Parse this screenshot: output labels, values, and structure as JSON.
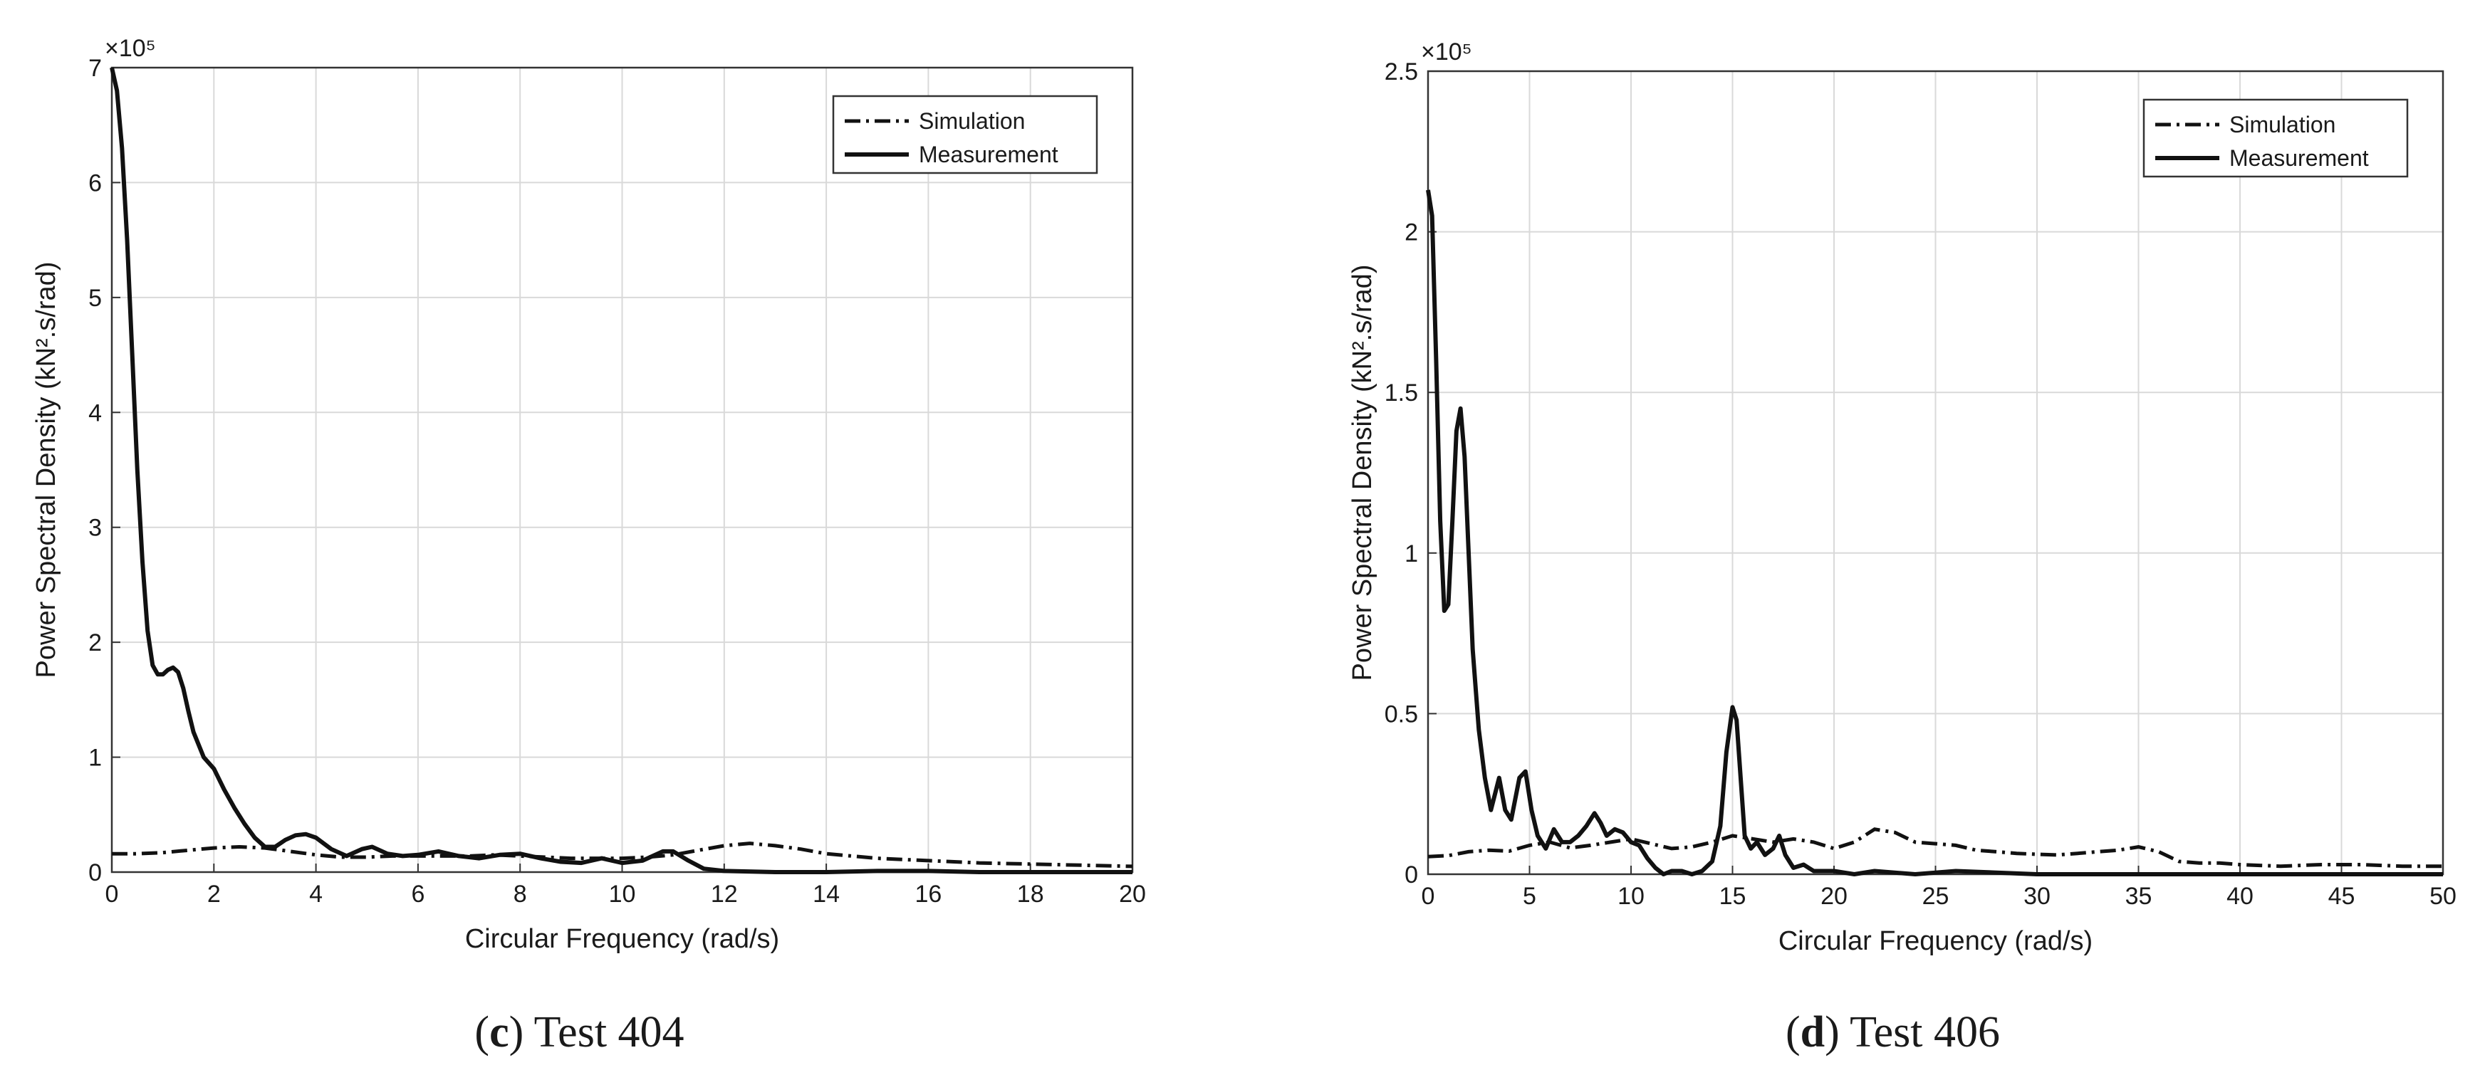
{
  "chart_data": [
    {
      "type": "line",
      "xlabel": "Circular Frequency (rad/s)",
      "ylabel": "Power Spectral Density (kN².s/rad)",
      "y_multiplier": "×10⁵",
      "xlim": [
        0,
        20
      ],
      "ylim": [
        0,
        7
      ],
      "xticks": [
        0,
        2,
        4,
        6,
        8,
        10,
        12,
        14,
        16,
        18,
        20
      ],
      "yticks": [
        0,
        1,
        2,
        3,
        4,
        5,
        6,
        7
      ],
      "grid": true,
      "legend_position": "top-right",
      "caption_letter": "c",
      "caption_text": ") Test 404",
      "series": [
        {
          "name": "Simulation",
          "style": "dash-dot",
          "x": [
            0,
            0.5,
            1,
            1.5,
            2,
            2.5,
            3,
            3.5,
            4,
            4.5,
            5,
            5.5,
            6,
            6.5,
            7,
            7.5,
            8,
            8.5,
            9,
            9.5,
            10,
            10.5,
            11,
            11.5,
            12,
            12.5,
            13,
            13.5,
            14,
            15,
            16,
            17,
            18,
            19,
            20
          ],
          "y": [
            0.16,
            0.16,
            0.17,
            0.19,
            0.21,
            0.22,
            0.21,
            0.18,
            0.15,
            0.13,
            0.13,
            0.14,
            0.14,
            0.14,
            0.14,
            0.15,
            0.14,
            0.13,
            0.12,
            0.12,
            0.12,
            0.13,
            0.15,
            0.19,
            0.23,
            0.25,
            0.23,
            0.2,
            0.16,
            0.12,
            0.1,
            0.08,
            0.07,
            0.06,
            0.05
          ]
        },
        {
          "name": "Measurement",
          "style": "solid",
          "x": [
            0,
            0.1,
            0.2,
            0.3,
            0.4,
            0.5,
            0.6,
            0.7,
            0.8,
            0.9,
            1.0,
            1.1,
            1.2,
            1.3,
            1.4,
            1.5,
            1.6,
            1.8,
            2.0,
            2.2,
            2.4,
            2.6,
            2.8,
            3.0,
            3.2,
            3.4,
            3.6,
            3.8,
            4.0,
            4.3,
            4.6,
            4.9,
            5.1,
            5.4,
            5.7,
            6.0,
            6.4,
            6.8,
            7.2,
            7.6,
            8.0,
            8.4,
            8.8,
            9.2,
            9.6,
            10.0,
            10.4,
            10.8,
            11.0,
            11.3,
            11.6,
            12.0,
            13.0,
            14.0,
            15.0,
            16.0,
            17.0,
            18.0,
            19.0,
            20.0
          ],
          "y": [
            7.0,
            6.8,
            6.3,
            5.5,
            4.5,
            3.5,
            2.7,
            2.1,
            1.8,
            1.72,
            1.72,
            1.76,
            1.78,
            1.74,
            1.6,
            1.4,
            1.22,
            1.0,
            0.9,
            0.72,
            0.56,
            0.42,
            0.3,
            0.22,
            0.22,
            0.28,
            0.32,
            0.33,
            0.3,
            0.2,
            0.14,
            0.2,
            0.22,
            0.16,
            0.14,
            0.15,
            0.18,
            0.14,
            0.12,
            0.15,
            0.16,
            0.12,
            0.09,
            0.08,
            0.12,
            0.08,
            0.1,
            0.18,
            0.18,
            0.1,
            0.03,
            0.01,
            0.0,
            0.0,
            0.01,
            0.01,
            0.0,
            0.0,
            0.0,
            0.0
          ]
        }
      ]
    },
    {
      "type": "line",
      "xlabel": "Circular Frequency (rad/s)",
      "ylabel": "Power Spectral Density (kN².s/rad)",
      "y_multiplier": "×10⁵",
      "xlim": [
        0,
        50
      ],
      "ylim": [
        0,
        2.5
      ],
      "xticks": [
        0,
        5,
        10,
        15,
        20,
        25,
        30,
        35,
        40,
        45,
        50
      ],
      "yticks": [
        0,
        0.5,
        1,
        1.5,
        2,
        2.5
      ],
      "ytick_labels": [
        "0",
        "0.5",
        "1",
        "1.5",
        "2",
        "2.5"
      ],
      "grid": true,
      "legend_position": "top-right",
      "caption_letter": "d",
      "caption_text": ") Test 406",
      "series": [
        {
          "name": "Simulation",
          "style": "dash-dot",
          "x": [
            0,
            1,
            2,
            3,
            4,
            5,
            6,
            7,
            8,
            9,
            10,
            11,
            12,
            13,
            14,
            15,
            16,
            17,
            18,
            19,
            20,
            21,
            22,
            23,
            24,
            25,
            26,
            27,
            28,
            29,
            30,
            31,
            32,
            33,
            34,
            35,
            36,
            37,
            38,
            39,
            40,
            42,
            44,
            46,
            48,
            50
          ],
          "y": [
            0.055,
            0.058,
            0.07,
            0.075,
            0.072,
            0.09,
            0.1,
            0.082,
            0.09,
            0.1,
            0.11,
            0.095,
            0.08,
            0.085,
            0.1,
            0.12,
            0.11,
            0.1,
            0.11,
            0.1,
            0.08,
            0.1,
            0.14,
            0.13,
            0.1,
            0.095,
            0.09,
            0.075,
            0.07,
            0.065,
            0.062,
            0.06,
            0.065,
            0.07,
            0.075,
            0.085,
            0.07,
            0.04,
            0.035,
            0.035,
            0.03,
            0.025,
            0.03,
            0.03,
            0.025,
            0.025
          ]
        },
        {
          "name": "Measurement",
          "style": "solid",
          "x": [
            0,
            0.2,
            0.4,
            0.6,
            0.8,
            1.0,
            1.2,
            1.4,
            1.6,
            1.8,
            2.0,
            2.2,
            2.5,
            2.8,
            3.1,
            3.5,
            3.8,
            4.1,
            4.5,
            4.8,
            5.1,
            5.4,
            5.8,
            6.2,
            6.6,
            7.0,
            7.4,
            7.8,
            8.2,
            8.5,
            8.8,
            9.2,
            9.6,
            10.0,
            10.4,
            10.8,
            11.2,
            11.6,
            12.0,
            12.5,
            13.0,
            13.5,
            14.0,
            14.4,
            14.7,
            15.0,
            15.2,
            15.4,
            15.6,
            15.9,
            16.2,
            16.6,
            17.0,
            17.3,
            17.6,
            18.0,
            18.5,
            19.0,
            20.0,
            21.0,
            22.0,
            24.0,
            26.0,
            30.0,
            35.0,
            40.0,
            45.0,
            50.0
          ],
          "y": [
            2.13,
            2.05,
            1.6,
            1.1,
            0.82,
            0.84,
            1.1,
            1.38,
            1.45,
            1.3,
            1.0,
            0.7,
            0.45,
            0.3,
            0.2,
            0.3,
            0.2,
            0.17,
            0.3,
            0.32,
            0.2,
            0.12,
            0.08,
            0.14,
            0.1,
            0.1,
            0.12,
            0.15,
            0.19,
            0.16,
            0.12,
            0.14,
            0.13,
            0.1,
            0.09,
            0.05,
            0.02,
            0.0,
            0.01,
            0.01,
            0.0,
            0.01,
            0.04,
            0.15,
            0.38,
            0.52,
            0.48,
            0.3,
            0.12,
            0.08,
            0.1,
            0.06,
            0.08,
            0.12,
            0.06,
            0.02,
            0.03,
            0.01,
            0.01,
            0.0,
            0.01,
            0.0,
            0.01,
            0.0,
            0.0,
            0.0,
            0.0,
            0.0
          ]
        }
      ]
    }
  ]
}
